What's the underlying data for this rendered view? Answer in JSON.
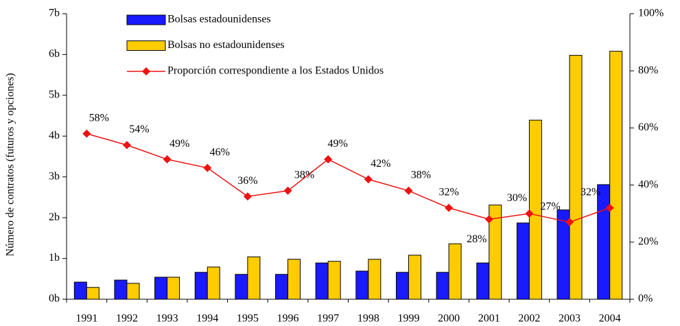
{
  "chart_data": {
    "type": "bar_line",
    "y_label": "Número de contratos (futuros y opciones)",
    "categories": [
      "1991",
      "1992",
      "1993",
      "1994",
      "1995",
      "1996",
      "1997",
      "1998",
      "1999",
      "2000",
      "2001",
      "2002",
      "2003",
      "2004"
    ],
    "series": [
      {
        "name": "Bolsas estadounidenses",
        "type": "bar",
        "color": "#1a1aff",
        "values": [
          0.42,
          0.47,
          0.54,
          0.66,
          0.61,
          0.61,
          0.89,
          0.69,
          0.66,
          0.66,
          0.89,
          1.87,
          2.19,
          2.81
        ]
      },
      {
        "name": "Bolsas no estadounidenses",
        "type": "bar",
        "color": "#ffcc00",
        "values": [
          0.29,
          0.39,
          0.54,
          0.79,
          1.04,
          0.98,
          0.93,
          0.98,
          1.08,
          1.36,
          2.31,
          4.39,
          5.98,
          6.08
        ]
      },
      {
        "name": "Proporción correspondiente a los Estados Unidos",
        "type": "line",
        "axis": "y2",
        "color": "#ee1111",
        "values": [
          58,
          54,
          49,
          46,
          36,
          38,
          49,
          42,
          38,
          32,
          28,
          30,
          27,
          32
        ],
        "value_labels": [
          "58%",
          "54%",
          "49%",
          "46%",
          "36%",
          "38%",
          "49%",
          "42%",
          "38%",
          "32%",
          "28%",
          "30%",
          "27%",
          "32%"
        ]
      }
    ],
    "ylim": [
      0,
      7
    ],
    "yticks": [
      {
        "value": 0,
        "label": "0b"
      },
      {
        "value": 1,
        "label": "1b"
      },
      {
        "value": 2,
        "label": "2b"
      },
      {
        "value": 3,
        "label": "3b"
      },
      {
        "value": 4,
        "label": "4b"
      },
      {
        "value": 5,
        "label": "5b"
      },
      {
        "value": 6,
        "label": "6b"
      },
      {
        "value": 7,
        "label": "7b"
      }
    ],
    "y2lim": [
      0,
      100
    ],
    "y2ticks": [
      {
        "value": 0,
        "label": "0%"
      },
      {
        "value": 20,
        "label": "20%"
      },
      {
        "value": 40,
        "label": "40%"
      },
      {
        "value": 60,
        "label": "60%"
      },
      {
        "value": 80,
        "label": "80%"
      },
      {
        "value": 100,
        "label": "100%"
      }
    ]
  }
}
